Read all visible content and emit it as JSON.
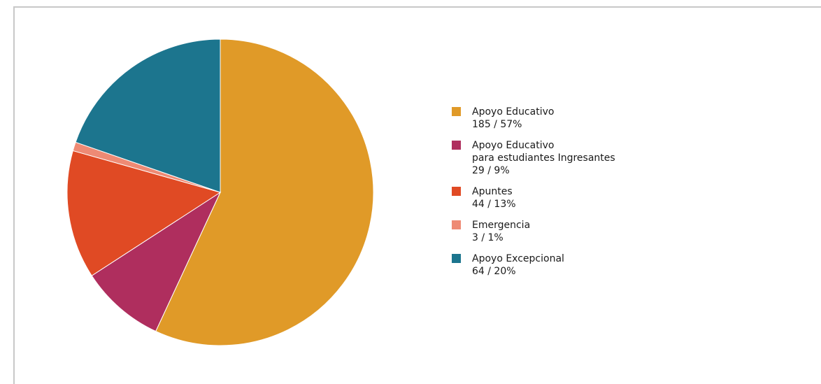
{
  "chart_data": {
    "type": "pie",
    "start": "top",
    "direction": "clockwise",
    "slices": [
      {
        "label": "Apoyo Educativo",
        "value": 185,
        "percent": "57%",
        "value_text": "185 / 57%",
        "color": "#E09A28"
      },
      {
        "label": "Apoyo Educativo para estudiantes Ingresantes",
        "label_lines": [
          "Apoyo Educativo",
          "para estudiantes Ingresantes"
        ],
        "value": 29,
        "percent": "9%",
        "value_text": "29 / 9%",
        "color": "#AF2E5E"
      },
      {
        "label": "Apuntes",
        "value": 44,
        "percent": "13%",
        "value_text": "44 / 13%",
        "color": "#E04A24"
      },
      {
        "label": "Emergencia",
        "value": 3,
        "percent": "1%",
        "value_text": "3 / 1%",
        "color": "#EE8A74"
      },
      {
        "label": "Apoyo Excepcional",
        "value": 64,
        "percent": "20%",
        "value_text": "64 / 20%",
        "color": "#1C758E"
      }
    ],
    "legend_position": "right"
  }
}
